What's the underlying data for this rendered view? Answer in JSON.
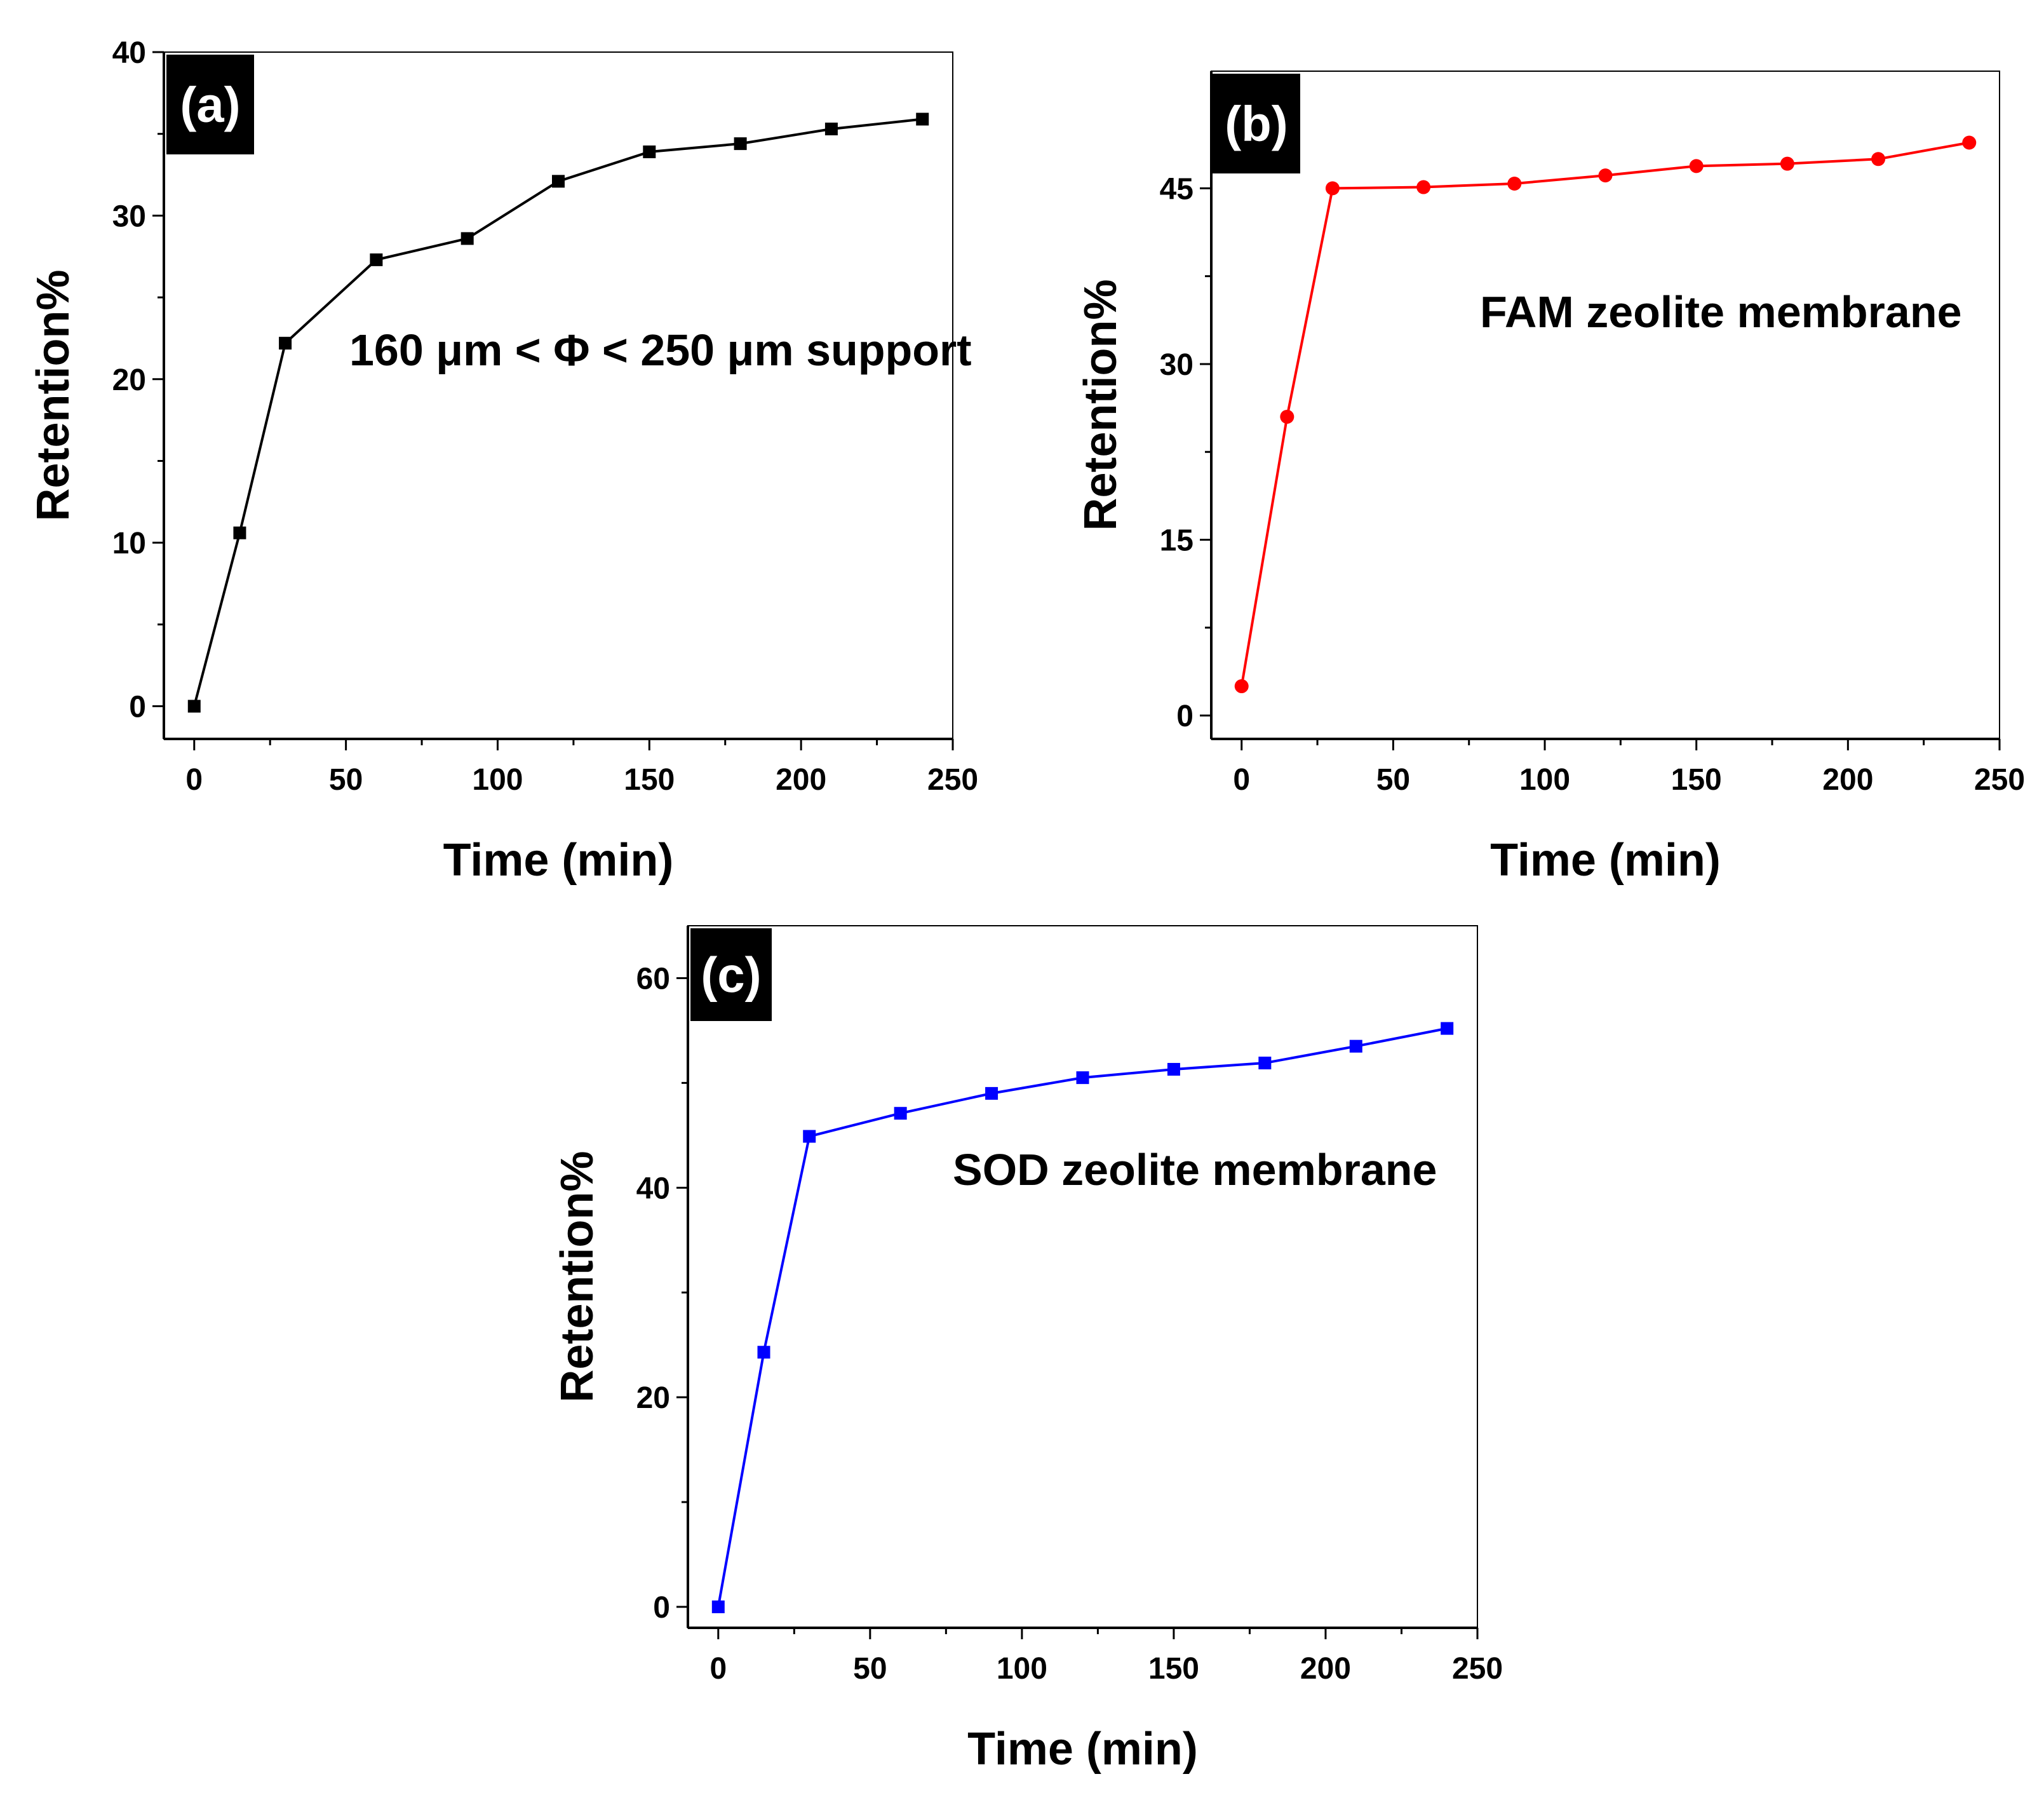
{
  "chart_data": [
    {
      "type": "line",
      "panel_label": "(a)",
      "title": "",
      "annotation": "160 μm < Φ < 250 μm support",
      "xlabel": "Time (min)",
      "ylabel": "Retention%",
      "xlim": [
        -10,
        250
      ],
      "ylim": [
        -2,
        40
      ],
      "xticks": [
        0,
        50,
        100,
        150,
        200,
        250
      ],
      "yticks": [
        0,
        10,
        20,
        30,
        40
      ],
      "series": [
        {
          "name": "160 μm < Φ < 250 μm support",
          "color": "#000000",
          "marker": "square",
          "x": [
            0,
            15,
            30,
            60,
            90,
            120,
            150,
            180,
            210,
            240
          ],
          "values": [
            0,
            10.6,
            22.2,
            27.3,
            28.6,
            32.1,
            33.9,
            34.4,
            35.3,
            35.9
          ]
        }
      ]
    },
    {
      "type": "line",
      "panel_label": "(b)",
      "title": "",
      "annotation": "FAM zeolite membrane",
      "xlabel": "Time (min)",
      "ylabel": "Retention%",
      "xlim": [
        -10,
        250
      ],
      "ylim": [
        -2,
        55
      ],
      "xticks": [
        0,
        50,
        100,
        150,
        200,
        250
      ],
      "yticks": [
        0,
        15,
        30,
        45
      ],
      "series": [
        {
          "name": "FAM zeolite membrane",
          "color": "#ff0000",
          "marker": "circle",
          "x": [
            0,
            15,
            30,
            60,
            90,
            120,
            150,
            180,
            210,
            240
          ],
          "values": [
            2.5,
            25.5,
            45.0,
            45.1,
            45.4,
            46.1,
            46.9,
            47.1,
            47.5,
            48.9
          ]
        }
      ]
    },
    {
      "type": "line",
      "panel_label": "(c)",
      "title": "",
      "annotation": "SOD zeolite membrane",
      "xlabel": "Time (min)",
      "ylabel": "Retention%",
      "xlim": [
        -10,
        250
      ],
      "ylim": [
        -2,
        65
      ],
      "xticks": [
        0,
        50,
        100,
        150,
        200,
        250
      ],
      "yticks": [
        0,
        20,
        40,
        60
      ],
      "series": [
        {
          "name": "SOD zeolite membrane",
          "color": "#0000ff",
          "marker": "square",
          "x": [
            0,
            15,
            30,
            60,
            90,
            120,
            150,
            180,
            210,
            240
          ],
          "values": [
            0,
            24.3,
            44.9,
            47.1,
            49.0,
            50.5,
            51.3,
            51.9,
            53.5,
            55.2
          ]
        }
      ]
    }
  ]
}
